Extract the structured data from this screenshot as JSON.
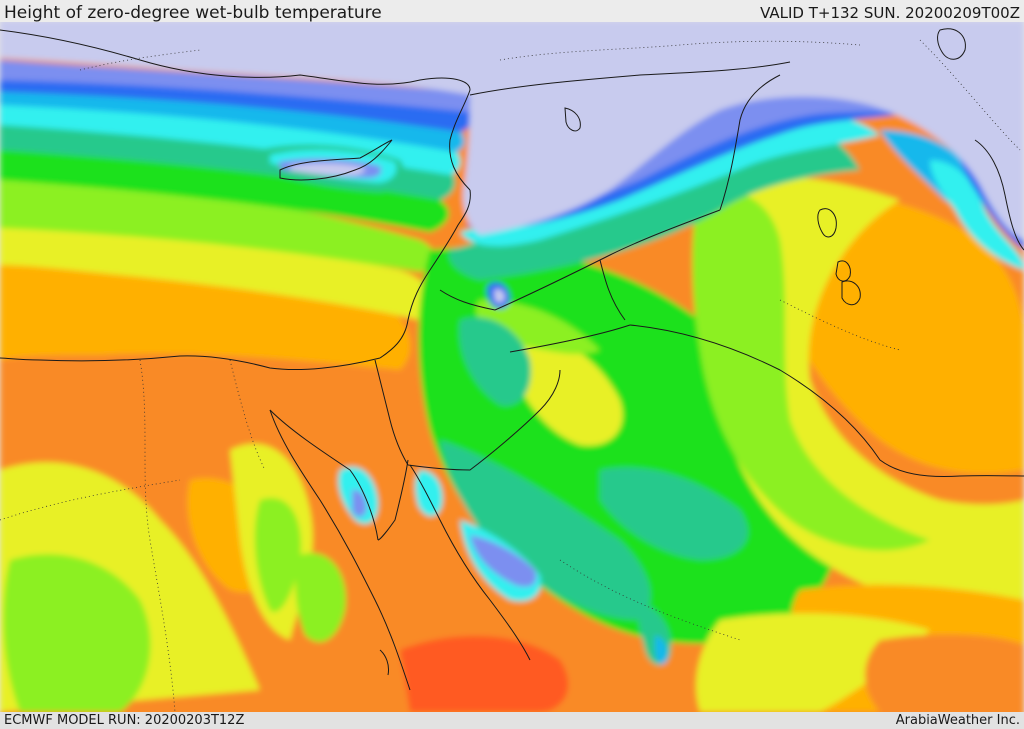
{
  "header": {
    "title": "Height of zero-degree wet-bulb temperature",
    "valid": "VALID T+132 SUN. 20200209T00Z"
  },
  "footer": {
    "model_run": "ECMWF MODEL RUN: 20200203T12Z",
    "credit": "ArabiaWeather Inc."
  },
  "map": {
    "field": "zero-degree wet-bulb height",
    "region": "Eastern Mediterranean, Egypt, Levant, Iraq and northern Arabia",
    "palette": [
      "#c8cbee",
      "#7b8ff0",
      "#2c6cf2",
      "#16b8ec",
      "#32f0ef",
      "#27c98c",
      "#1ee11e",
      "#8cf020",
      "#e8f028",
      "#ffb000",
      "#f98a28",
      "#ff5a20"
    ]
  }
}
